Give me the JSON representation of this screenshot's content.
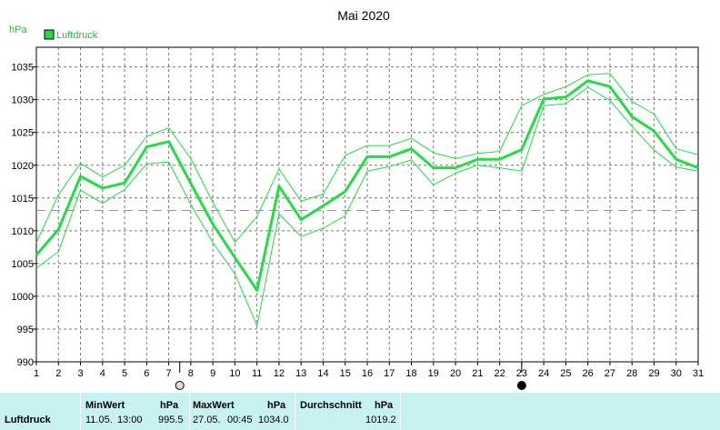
{
  "chart_data": {
    "type": "line",
    "title": "Mai 2020",
    "ylabel": "hPa",
    "xlabel": "",
    "legend": [
      {
        "name": "Luftdruck",
        "color": "#22dd44"
      }
    ],
    "legend_position": "top-left",
    "grid": true,
    "xlim": [
      1,
      31
    ],
    "ylim": [
      990,
      1038
    ],
    "x_ticks": [
      1,
      2,
      3,
      4,
      5,
      6,
      7,
      8,
      9,
      10,
      11,
      12,
      13,
      14,
      15,
      16,
      17,
      18,
      19,
      20,
      21,
      22,
      23,
      24,
      25,
      26,
      27,
      28,
      29,
      30,
      31
    ],
    "x_tick_labels": [
      "1",
      "2",
      "3",
      "4",
      "5",
      "6",
      "7",
      "8",
      "9",
      "10",
      "11",
      "12",
      "13",
      "14",
      "15",
      "16",
      "17",
      "18",
      "19",
      "20",
      "21",
      "22",
      "23",
      "24",
      "25",
      "26",
      "27",
      "28",
      "29",
      "30",
      "31"
    ],
    "y_ticks": [
      990,
      995,
      1000,
      1005,
      1010,
      1015,
      1020,
      1025,
      1030,
      1035
    ],
    "y_tick_labels": [
      "990",
      "995",
      "1000",
      "1005",
      "1010",
      "1015",
      "1020",
      "1025",
      "1030",
      "1035"
    ],
    "x": [
      1,
      2,
      3,
      4,
      5,
      6,
      7,
      8,
      9,
      10,
      11,
      12,
      13,
      14,
      15,
      16,
      17,
      18,
      19,
      20,
      21,
      22,
      23,
      24,
      25,
      26,
      27,
      28,
      29,
      30,
      31
    ],
    "series": [
      {
        "role": "mean",
        "values": [
          1006.3,
          1010.2,
          1018.3,
          1016.5,
          1017.3,
          1022.8,
          1023.6,
          1017.2,
          1011.0,
          1005.9,
          1000.9,
          1016.8,
          1011.7,
          1013.8,
          1016.0,
          1021.3,
          1021.3,
          1022.5,
          1019.6,
          1019.6,
          1020.9,
          1020.9,
          1022.4,
          1030.1,
          1030.4,
          1032.9,
          1032.0,
          1027.4,
          1025.2,
          1020.9,
          1019.6
        ]
      },
      {
        "role": "max",
        "values": [
          1008.2,
          1015.5,
          1020.3,
          1018.2,
          1020.0,
          1024.4,
          1025.7,
          1021.0,
          1014.3,
          1008.2,
          1012.2,
          1019.4,
          1014.5,
          1015.6,
          1021.5,
          1023.0,
          1023.0,
          1024.1,
          1021.9,
          1021.0,
          1021.8,
          1022.1,
          1029.1,
          1030.8,
          1032.0,
          1033.8,
          1034.0,
          1029.7,
          1027.8,
          1022.5,
          1021.6
        ]
      },
      {
        "role": "min",
        "values": [
          1004.3,
          1006.8,
          1016.2,
          1014.2,
          1016.3,
          1020.2,
          1020.5,
          1014.0,
          1008.2,
          1003.4,
          995.5,
          1012.6,
          1009.1,
          1010.4,
          1012.3,
          1019.1,
          1019.8,
          1020.8,
          1017.0,
          1018.8,
          1020.0,
          1019.6,
          1019.1,
          1029.1,
          1029.4,
          1031.9,
          1029.9,
          1025.9,
          1022.3,
          1019.7,
          1019.1
        ]
      }
    ],
    "mean_line": 1013.1,
    "markers": [
      {
        "x": 7.5,
        "symbol": "full-moon"
      },
      {
        "x": 23,
        "symbol": "new-moon"
      }
    ]
  },
  "stats": {
    "row_label": "Luftdruck",
    "min_header": "MinWert",
    "min_unit": "hPa",
    "min_date": "11.05.",
    "min_time": "13:00",
    "min_value": "995.5",
    "max_header": "MaxWert",
    "max_unit": "hPa",
    "max_date": "27.05.",
    "max_time": "00:45",
    "max_value": "1034.0",
    "avg_header": "Durchschnitt",
    "avg_unit": "hPa",
    "avg_value": "1019.2"
  }
}
